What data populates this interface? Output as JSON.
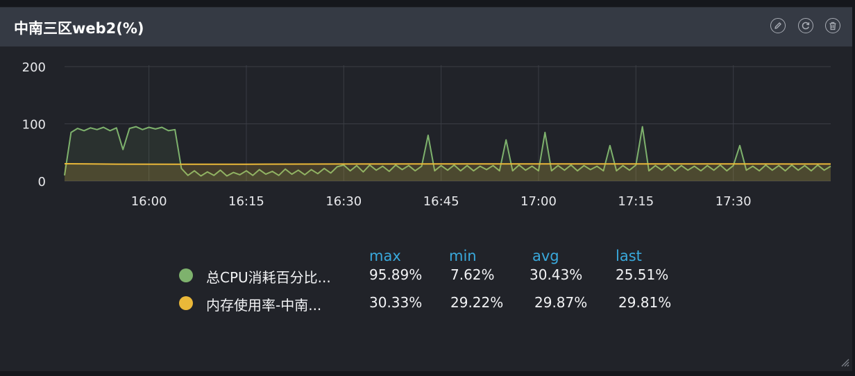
{
  "panel": {
    "title": "中南三区web2(%)",
    "actions": [
      {
        "name": "edit-button",
        "icon": "pencil-icon"
      },
      {
        "name": "refresh-button",
        "icon": "refresh-icon"
      },
      {
        "name": "delete-button",
        "icon": "trash-icon"
      }
    ]
  },
  "legend": {
    "headers": {
      "max": "max",
      "min": "min",
      "avg": "avg",
      "last": "last"
    },
    "rows": [
      {
        "name": "总CPU消耗百分比...",
        "color": "#7eb26d",
        "max": "95.89%",
        "min": "7.62%",
        "avg": "30.43%",
        "last": "25.51%"
      },
      {
        "name": "内存使用率-中南...",
        "color": "#eab839",
        "max": "30.33%",
        "min": "29.22%",
        "avg": "29.87%",
        "last": "29.81%"
      }
    ]
  },
  "chart_data": {
    "type": "area",
    "x_ticks": [
      "16:00",
      "16:15",
      "16:30",
      "16:45",
      "17:00",
      "17:15",
      "17:30"
    ],
    "y_ticks": [
      "0",
      "100",
      "200"
    ],
    "ylim": [
      0,
      200
    ],
    "xlim": [
      "15:47",
      "17:45"
    ],
    "grid": true,
    "series": [
      {
        "name": "总CPU消耗百分比...",
        "color": "#7eb26d",
        "points": [
          [
            "15:47",
            10
          ],
          [
            "15:48",
            85
          ],
          [
            "15:49",
            92
          ],
          [
            "15:50",
            88
          ],
          [
            "15:51",
            93
          ],
          [
            "15:52",
            90
          ],
          [
            "15:53",
            94
          ],
          [
            "15:54",
            88
          ],
          [
            "15:55",
            93
          ],
          [
            "15:56",
            55
          ],
          [
            "15:57",
            92
          ],
          [
            "15:58",
            95
          ],
          [
            "15:59",
            90
          ],
          [
            "16:00",
            94
          ],
          [
            "16:01",
            91
          ],
          [
            "16:02",
            94
          ],
          [
            "16:03",
            88
          ],
          [
            "16:04",
            90
          ],
          [
            "16:05",
            22
          ],
          [
            "16:06",
            10
          ],
          [
            "16:07",
            18
          ],
          [
            "16:08",
            9
          ],
          [
            "16:09",
            16
          ],
          [
            "16:10",
            10
          ],
          [
            "16:11",
            19
          ],
          [
            "16:12",
            9
          ],
          [
            "16:13",
            15
          ],
          [
            "16:14",
            11
          ],
          [
            "16:15",
            18
          ],
          [
            "16:16",
            10
          ],
          [
            "16:17",
            20
          ],
          [
            "16:18",
            12
          ],
          [
            "16:19",
            17
          ],
          [
            "16:20",
            10
          ],
          [
            "16:21",
            21
          ],
          [
            "16:22",
            12
          ],
          [
            "16:23",
            19
          ],
          [
            "16:24",
            11
          ],
          [
            "16:25",
            20
          ],
          [
            "16:26",
            13
          ],
          [
            "16:27",
            22
          ],
          [
            "16:28",
            14
          ],
          [
            "16:29",
            25
          ],
          [
            "16:30",
            28
          ],
          [
            "16:31",
            18
          ],
          [
            "16:32",
            27
          ],
          [
            "16:33",
            16
          ],
          [
            "16:34",
            28
          ],
          [
            "16:35",
            19
          ],
          [
            "16:36",
            26
          ],
          [
            "16:37",
            17
          ],
          [
            "16:38",
            28
          ],
          [
            "16:39",
            20
          ],
          [
            "16:40",
            27
          ],
          [
            "16:41",
            18
          ],
          [
            "16:42",
            26
          ],
          [
            "16:43",
            80
          ],
          [
            "16:44",
            18
          ],
          [
            "16:45",
            27
          ],
          [
            "16:46",
            19
          ],
          [
            "16:47",
            28
          ],
          [
            "16:48",
            18
          ],
          [
            "16:49",
            27
          ],
          [
            "16:50",
            18
          ],
          [
            "16:51",
            26
          ],
          [
            "16:52",
            20
          ],
          [
            "16:53",
            27
          ],
          [
            "16:54",
            18
          ],
          [
            "16:55",
            72
          ],
          [
            "16:56",
            18
          ],
          [
            "16:57",
            28
          ],
          [
            "16:58",
            19
          ],
          [
            "16:59",
            26
          ],
          [
            "17:00",
            18
          ],
          [
            "17:01",
            85
          ],
          [
            "17:02",
            18
          ],
          [
            "17:03",
            27
          ],
          [
            "17:04",
            19
          ],
          [
            "17:05",
            28
          ],
          [
            "17:06",
            18
          ],
          [
            "17:07",
            27
          ],
          [
            "17:08",
            20
          ],
          [
            "17:09",
            26
          ],
          [
            "17:10",
            18
          ],
          [
            "17:11",
            62
          ],
          [
            "17:12",
            18
          ],
          [
            "17:13",
            27
          ],
          [
            "17:14",
            19
          ],
          [
            "17:15",
            28
          ],
          [
            "17:16",
            95
          ],
          [
            "17:17",
            18
          ],
          [
            "17:18",
            27
          ],
          [
            "17:19",
            19
          ],
          [
            "17:20",
            28
          ],
          [
            "17:21",
            18
          ],
          [
            "17:22",
            27
          ],
          [
            "17:23",
            19
          ],
          [
            "17:24",
            26
          ],
          [
            "17:25",
            18
          ],
          [
            "17:26",
            27
          ],
          [
            "17:27",
            19
          ],
          [
            "17:28",
            28
          ],
          [
            "17:29",
            18
          ],
          [
            "17:30",
            27
          ],
          [
            "17:31",
            62
          ],
          [
            "17:32",
            19
          ],
          [
            "17:33",
            26
          ],
          [
            "17:34",
            18
          ],
          [
            "17:35",
            28
          ],
          [
            "17:36",
            19
          ],
          [
            "17:37",
            27
          ],
          [
            "17:38",
            18
          ],
          [
            "17:39",
            28
          ],
          [
            "17:40",
            19
          ],
          [
            "17:41",
            27
          ],
          [
            "17:42",
            18
          ],
          [
            "17:43",
            28
          ],
          [
            "17:44",
            19
          ],
          [
            "17:45",
            26
          ]
        ]
      },
      {
        "name": "内存使用率-中南...",
        "color": "#eab839",
        "points": [
          [
            "15:47",
            30.3
          ],
          [
            "15:55",
            29.6
          ],
          [
            "16:05",
            29.4
          ],
          [
            "16:15",
            29.5
          ],
          [
            "16:30",
            29.8
          ],
          [
            "16:45",
            29.9
          ],
          [
            "17:00",
            30.0
          ],
          [
            "17:15",
            29.9
          ],
          [
            "17:30",
            30.0
          ],
          [
            "17:45",
            29.8
          ]
        ]
      }
    ]
  }
}
